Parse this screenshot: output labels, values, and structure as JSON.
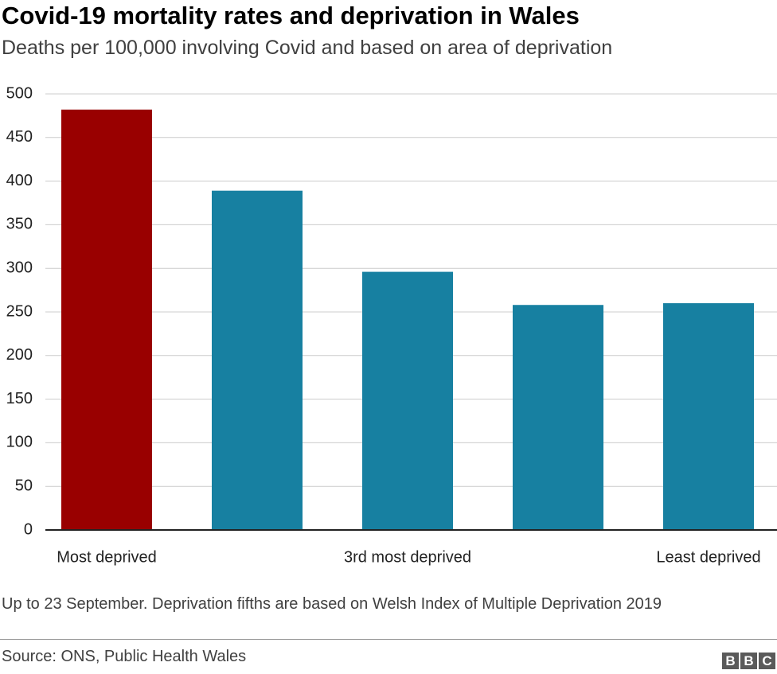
{
  "chart_data": {
    "type": "bar",
    "title": "Covid-19 mortality rates and deprivation in Wales",
    "subtitle": "Deaths per 100,000 involving Covid and based on area of deprivation",
    "categories": [
      "Most deprived",
      null,
      "3rd most deprived",
      null,
      "Least deprived"
    ],
    "values": [
      482,
      389,
      296,
      258,
      260
    ],
    "colors": [
      "#990000",
      "#1780a1",
      "#1780a1",
      "#1780a1",
      "#1780a1"
    ],
    "ylim": [
      0,
      500
    ],
    "yticks": [
      0,
      50,
      100,
      150,
      200,
      250,
      300,
      350,
      400,
      450,
      500
    ],
    "grid": true,
    "note": "Up to 23 September. Deprivation fifths are based on Welsh Index of Multiple Deprivation 2019",
    "source": "Source: ONS, Public Health Wales",
    "logo": [
      "B",
      "B",
      "C"
    ]
  }
}
